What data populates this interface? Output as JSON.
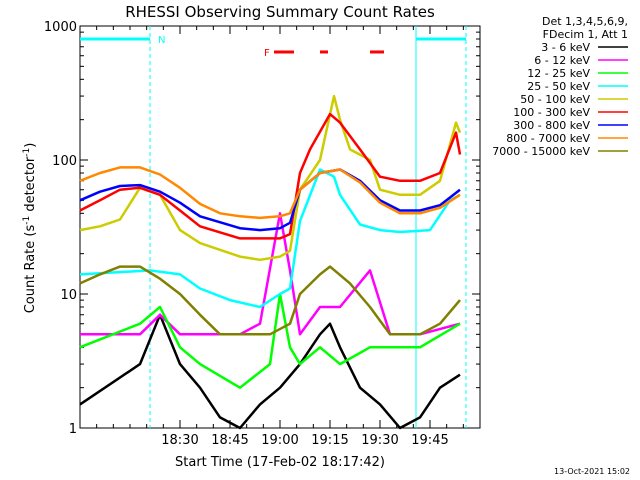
{
  "chart_data": {
    "type": "line",
    "title": "RHESSI Observing Summary Count Rates",
    "xlabel": "Start Time (17-Feb-02 18:17:42)",
    "ylabel_main": "Count Rate (s",
    "ylabel_sup1": "-1",
    "ylabel_mid": " detector",
    "ylabel_sup2": "-1",
    "ylabel_end": ")",
    "yscale": "log",
    "ylim": [
      1,
      1000
    ],
    "xlim_min": [
      18.0,
      20.0
    ],
    "yticks": [
      {
        "v": 1,
        "label": "1"
      },
      {
        "v": 10,
        "label": "10"
      },
      {
        "v": 100,
        "label": "100"
      },
      {
        "v": 1000,
        "label": "1000"
      }
    ],
    "xticks": [
      {
        "t": 18.5,
        "label": "18:30"
      },
      {
        "t": 18.75,
        "label": "18:45"
      },
      {
        "t": 19.0,
        "label": "19:00"
      },
      {
        "t": 19.25,
        "label": "19:15"
      },
      {
        "t": 19.5,
        "label": "19:30"
      },
      {
        "t": 19.75,
        "label": "19:45"
      }
    ],
    "legend_header": [
      "Det 1,3,4,5,6,9,",
      "FDecim 1, Att 1"
    ],
    "series": [
      {
        "name": "3 - 6 keV",
        "color": "#000000",
        "points": [
          [
            18.0,
            1.5
          ],
          [
            18.3,
            3
          ],
          [
            18.4,
            7
          ],
          [
            18.5,
            3
          ],
          [
            18.6,
            2
          ],
          [
            18.7,
            1.2
          ],
          [
            18.8,
            1
          ],
          [
            18.9,
            1.5
          ],
          [
            19.0,
            2
          ],
          [
            19.1,
            3
          ],
          [
            19.2,
            5
          ],
          [
            19.25,
            6
          ],
          [
            19.3,
            4
          ],
          [
            19.4,
            2
          ],
          [
            19.5,
            1.5
          ],
          [
            19.6,
            1
          ],
          [
            19.7,
            1.2
          ],
          [
            19.8,
            2
          ],
          [
            19.9,
            2.5
          ]
        ]
      },
      {
        "name": "6 - 12 keV",
        "color": "#ff00ff",
        "points": [
          [
            18.0,
            5
          ],
          [
            18.3,
            5
          ],
          [
            18.4,
            7
          ],
          [
            18.5,
            5
          ],
          [
            18.6,
            5
          ],
          [
            18.8,
            5
          ],
          [
            18.9,
            6
          ],
          [
            19.0,
            40
          ],
          [
            19.05,
            15
          ],
          [
            19.1,
            5
          ],
          [
            19.2,
            8
          ],
          [
            19.3,
            8
          ],
          [
            19.45,
            15
          ],
          [
            19.55,
            5
          ],
          [
            19.7,
            5
          ],
          [
            19.9,
            6
          ]
        ]
      },
      {
        "name": "12 - 25 keV",
        "color": "#00ff00",
        "points": [
          [
            18.0,
            4
          ],
          [
            18.3,
            6
          ],
          [
            18.4,
            8
          ],
          [
            18.5,
            4
          ],
          [
            18.6,
            3
          ],
          [
            18.8,
            2
          ],
          [
            18.95,
            3
          ],
          [
            19.0,
            10
          ],
          [
            19.05,
            4
          ],
          [
            19.1,
            3
          ],
          [
            19.2,
            4
          ],
          [
            19.3,
            3
          ],
          [
            19.45,
            4
          ],
          [
            19.55,
            4
          ],
          [
            19.7,
            4
          ],
          [
            19.9,
            6
          ]
        ]
      },
      {
        "name": "25 - 50 keV",
        "color": "#00ffff",
        "points": [
          [
            18.0,
            14
          ],
          [
            18.35,
            15
          ],
          [
            18.5,
            14
          ],
          [
            18.6,
            11
          ],
          [
            18.75,
            9
          ],
          [
            18.9,
            8
          ],
          [
            19.0,
            10
          ],
          [
            19.05,
            11
          ],
          [
            19.1,
            35
          ],
          [
            19.2,
            85
          ],
          [
            19.27,
            75
          ],
          [
            19.3,
            55
          ],
          [
            19.4,
            33
          ],
          [
            19.5,
            30
          ],
          [
            19.6,
            29
          ],
          [
            19.75,
            30
          ],
          [
            19.85,
            50
          ],
          [
            19.9,
            55
          ]
        ]
      },
      {
        "name": "50 - 100 keV",
        "color": "#cccc00",
        "points": [
          [
            18.0,
            30
          ],
          [
            18.1,
            32
          ],
          [
            18.2,
            36
          ],
          [
            18.3,
            62
          ],
          [
            18.4,
            55
          ],
          [
            18.5,
            30
          ],
          [
            18.6,
            24
          ],
          [
            18.8,
            19
          ],
          [
            18.9,
            18
          ],
          [
            19.0,
            19
          ],
          [
            19.05,
            21
          ],
          [
            19.1,
            60
          ],
          [
            19.2,
            100
          ],
          [
            19.27,
            300
          ],
          [
            19.3,
            200
          ],
          [
            19.35,
            120
          ],
          [
            19.45,
            100
          ],
          [
            19.5,
            60
          ],
          [
            19.6,
            55
          ],
          [
            19.7,
            55
          ],
          [
            19.8,
            70
          ],
          [
            19.88,
            190
          ],
          [
            19.9,
            160
          ]
        ]
      },
      {
        "name": "100 - 300 keV",
        "color": "#ff0000",
        "points": [
          [
            18.0,
            42
          ],
          [
            18.1,
            50
          ],
          [
            18.2,
            60
          ],
          [
            18.3,
            62
          ],
          [
            18.4,
            55
          ],
          [
            18.5,
            42
          ],
          [
            18.6,
            32
          ],
          [
            18.8,
            26
          ],
          [
            18.9,
            26
          ],
          [
            19.0,
            26
          ],
          [
            19.05,
            28
          ],
          [
            19.1,
            80
          ],
          [
            19.15,
            120
          ],
          [
            19.25,
            220
          ],
          [
            19.3,
            190
          ],
          [
            19.4,
            120
          ],
          [
            19.5,
            75
          ],
          [
            19.6,
            70
          ],
          [
            19.7,
            70
          ],
          [
            19.8,
            80
          ],
          [
            19.88,
            160
          ],
          [
            19.9,
            110
          ]
        ]
      },
      {
        "name": "300 - 800 keV",
        "color": "#0000ff",
        "points": [
          [
            18.0,
            50
          ],
          [
            18.1,
            58
          ],
          [
            18.2,
            64
          ],
          [
            18.3,
            65
          ],
          [
            18.4,
            58
          ],
          [
            18.5,
            48
          ],
          [
            18.6,
            38
          ],
          [
            18.8,
            31
          ],
          [
            18.9,
            30
          ],
          [
            19.0,
            31
          ],
          [
            19.05,
            34
          ],
          [
            19.1,
            60
          ],
          [
            19.2,
            80
          ],
          [
            19.3,
            85
          ],
          [
            19.4,
            70
          ],
          [
            19.5,
            50
          ],
          [
            19.6,
            42
          ],
          [
            19.7,
            42
          ],
          [
            19.8,
            46
          ],
          [
            19.9,
            60
          ]
        ]
      },
      {
        "name": "800 - 7000 keV",
        "color": "#ff8800",
        "points": [
          [
            18.0,
            70
          ],
          [
            18.1,
            80
          ],
          [
            18.2,
            88
          ],
          [
            18.3,
            88
          ],
          [
            18.4,
            78
          ],
          [
            18.5,
            62
          ],
          [
            18.6,
            47
          ],
          [
            18.7,
            40
          ],
          [
            18.8,
            38
          ],
          [
            18.9,
            37
          ],
          [
            19.0,
            38
          ],
          [
            19.05,
            40
          ],
          [
            19.1,
            60
          ],
          [
            19.2,
            80
          ],
          [
            19.3,
            85
          ],
          [
            19.4,
            68
          ],
          [
            19.5,
            48
          ],
          [
            19.6,
            40
          ],
          [
            19.7,
            40
          ],
          [
            19.8,
            44
          ],
          [
            19.9,
            55
          ]
        ]
      },
      {
        "name": "7000 - 15000 keV",
        "color": "#808000",
        "points": [
          [
            18.0,
            12
          ],
          [
            18.1,
            14
          ],
          [
            18.2,
            16
          ],
          [
            18.3,
            16
          ],
          [
            18.4,
            13
          ],
          [
            18.5,
            10
          ],
          [
            18.6,
            7
          ],
          [
            18.7,
            5
          ],
          [
            18.8,
            5
          ],
          [
            18.95,
            5
          ],
          [
            19.05,
            6
          ],
          [
            19.1,
            10
          ],
          [
            19.2,
            14
          ],
          [
            19.25,
            16
          ],
          [
            19.35,
            12
          ],
          [
            19.45,
            8
          ],
          [
            19.55,
            5
          ],
          [
            19.7,
            5
          ],
          [
            19.8,
            6
          ],
          [
            19.9,
            9
          ]
        ]
      }
    ],
    "bars": [
      {
        "label": "N",
        "color": "#00ffff",
        "segments": [
          [
            18.0,
            18.35
          ],
          [
            19.68,
            19.93
          ]
        ],
        "level": 800
      },
      {
        "label": "F",
        "color": "#ff0000",
        "segments": [
          [
            18.97,
            19.07
          ],
          [
            19.2,
            19.24
          ],
          [
            19.45,
            19.52
          ]
        ],
        "level": 640
      }
    ],
    "vlines": [
      {
        "t": 18.35,
        "color": "#00ffff",
        "style": "dashed"
      },
      {
        "t": 19.68,
        "color": "#00ffff",
        "style": "solid"
      },
      {
        "t": 19.93,
        "color": "#00ffff",
        "style": "dashed"
      }
    ],
    "footer": "13-Oct-2021 15:02"
  }
}
